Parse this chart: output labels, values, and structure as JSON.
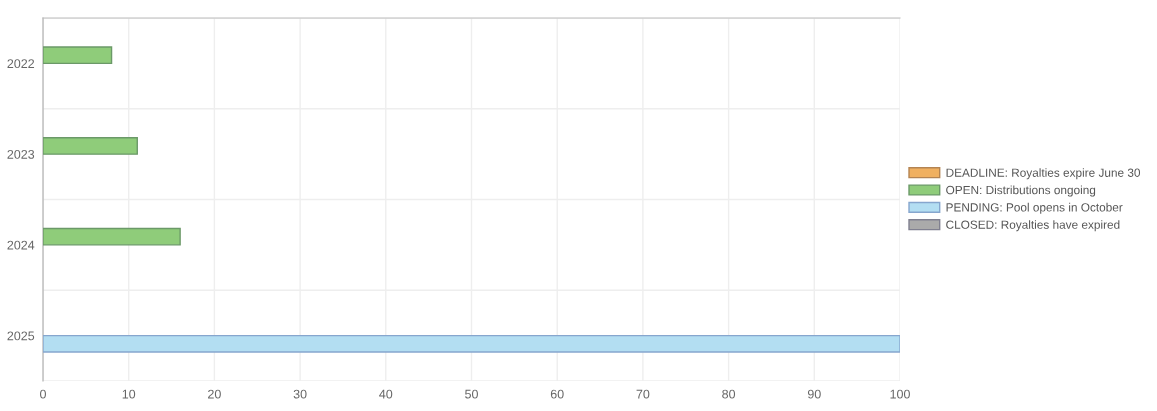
{
  "chart_data": {
    "type": "bar",
    "orientation": "horizontal",
    "categories": [
      "2022",
      "2023",
      "2024",
      "2025"
    ],
    "series": [
      {
        "name": "DEADLINE: Royalties expire June 30",
        "color": "#f0b060",
        "values": [
          null,
          null,
          null,
          null
        ]
      },
      {
        "name": "OPEN: Distributions ongoing",
        "color": "#8fcc7a",
        "values": [
          8,
          11,
          16,
          null
        ]
      },
      {
        "name": "PENDING: Pool opens in October",
        "color": "#b3def2",
        "values": [
          null,
          null,
          null,
          100
        ]
      },
      {
        "name": "CLOSED: Royalties have expired",
        "color": "#aaaaaa",
        "values": [
          null,
          null,
          null,
          null
        ]
      }
    ],
    "xlim": [
      0,
      100
    ],
    "xticks": [
      0,
      10,
      20,
      30,
      40,
      50,
      60,
      70,
      80,
      90,
      100
    ],
    "grid": true,
    "legend": "right"
  }
}
